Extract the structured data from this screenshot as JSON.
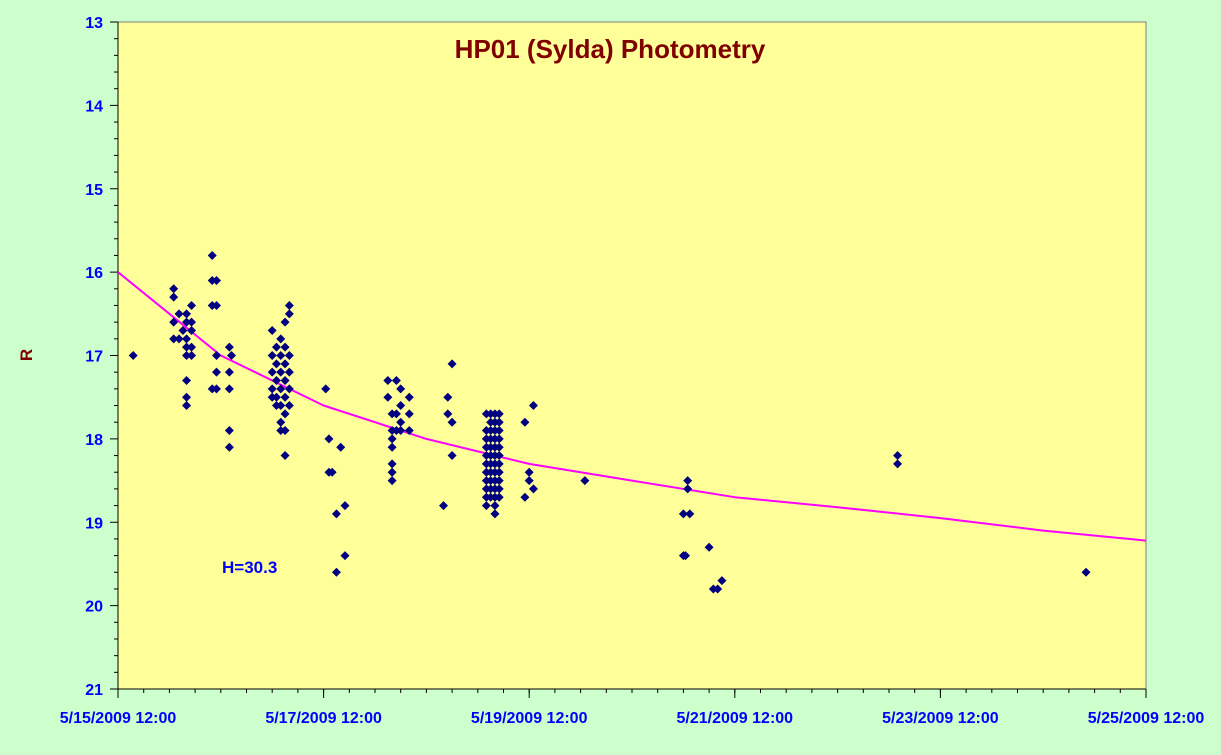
{
  "chart_data": {
    "type": "scatter",
    "title": "HP01 (Sylda) Photometry",
    "xlabel": "",
    "ylabel": "R",
    "annotation": "H=30.3",
    "xlim": [
      "5/15/2009 12:00",
      "5/25/2009 12:00"
    ],
    "ylim": [
      13,
      21
    ],
    "y_inverted": true,
    "grid": false,
    "legend": "none",
    "x_tick_labels": [
      "5/15/2009 12:00",
      "5/17/2009 12:00",
      "5/19/2009 12:00",
      "5/21/2009 12:00",
      "5/23/2009 12:00",
      "5/25/2009 12:00"
    ],
    "y_tick_labels": [
      "13",
      "14",
      "15",
      "16",
      "17",
      "18",
      "19",
      "20",
      "21"
    ],
    "colors": {
      "plot_area": "#ffff99",
      "background": "#ccffcc",
      "title": "#800000",
      "axis_labels": "#0000ff",
      "points": "#000080",
      "fit_line": "#ff00ff"
    },
    "series": [
      {
        "kind": "points",
        "points": [
          [
            "5/15/2009 15:33",
            17.0
          ],
          [
            "5/16/2009 01:00",
            16.2
          ],
          [
            "5/16/2009 01:00",
            16.3
          ],
          [
            "5/16/2009 01:00",
            16.6
          ],
          [
            "5/16/2009 01:00",
            16.8
          ],
          [
            "5/16/2009 02:15",
            16.5
          ],
          [
            "5/16/2009 02:15",
            16.8
          ],
          [
            "5/16/2009 03:10",
            16.7
          ],
          [
            "5/16/2009 04:00",
            16.5
          ],
          [
            "5/16/2009 04:00",
            16.6
          ],
          [
            "5/16/2009 04:00",
            16.8
          ],
          [
            "5/16/2009 04:00",
            16.9
          ],
          [
            "5/16/2009 04:00",
            17.0
          ],
          [
            "5/16/2009 04:00",
            17.3
          ],
          [
            "5/16/2009 04:00",
            17.5
          ],
          [
            "5/16/2009 04:00",
            17.6
          ],
          [
            "5/16/2009 05:10",
            16.4
          ],
          [
            "5/16/2009 05:10",
            16.6
          ],
          [
            "5/16/2009 05:10",
            16.9
          ],
          [
            "5/16/2009 05:10",
            17.0
          ],
          [
            "5/16/2009 05:10",
            16.7
          ],
          [
            "5/16/2009 10:00",
            15.8
          ],
          [
            "5/16/2009 10:00",
            16.1
          ],
          [
            "5/16/2009 10:00",
            16.4
          ],
          [
            "5/16/2009 10:00",
            17.4
          ],
          [
            "5/16/2009 11:00",
            16.1
          ],
          [
            "5/16/2009 11:00",
            16.4
          ],
          [
            "5/16/2009 11:00",
            17.0
          ],
          [
            "5/16/2009 11:00",
            17.2
          ],
          [
            "5/16/2009 11:00",
            17.4
          ],
          [
            "5/16/2009 14:00",
            16.9
          ],
          [
            "5/16/2009 14:00",
            17.2
          ],
          [
            "5/16/2009 14:00",
            17.4
          ],
          [
            "5/16/2009 14:00",
            17.9
          ],
          [
            "5/16/2009 14:00",
            18.1
          ],
          [
            "5/16/2009 14:30",
            17.0
          ],
          [
            "5/17/2009 00:00",
            16.7
          ],
          [
            "5/17/2009 00:00",
            17.0
          ],
          [
            "5/17/2009 00:00",
            17.2
          ],
          [
            "5/17/2009 00:00",
            17.4
          ],
          [
            "5/17/2009 00:00",
            17.5
          ],
          [
            "5/17/2009 01:00",
            16.9
          ],
          [
            "5/17/2009 01:00",
            17.1
          ],
          [
            "5/17/2009 01:00",
            17.3
          ],
          [
            "5/17/2009 01:00",
            17.5
          ],
          [
            "5/17/2009 01:00",
            17.6
          ],
          [
            "5/17/2009 02:00",
            16.8
          ],
          [
            "5/17/2009 02:00",
            17.0
          ],
          [
            "5/17/2009 02:00",
            17.2
          ],
          [
            "5/17/2009 02:00",
            17.4
          ],
          [
            "5/17/2009 02:00",
            17.6
          ],
          [
            "5/17/2009 02:00",
            17.8
          ],
          [
            "5/17/2009 02:00",
            17.9
          ],
          [
            "5/17/2009 03:00",
            16.6
          ],
          [
            "5/17/2009 03:00",
            16.9
          ],
          [
            "5/17/2009 03:00",
            17.1
          ],
          [
            "5/17/2009 03:00",
            17.3
          ],
          [
            "5/17/2009 03:00",
            17.5
          ],
          [
            "5/17/2009 03:00",
            17.7
          ],
          [
            "5/17/2009 03:00",
            17.9
          ],
          [
            "5/17/2009 03:00",
            18.2
          ],
          [
            "5/17/2009 04:00",
            16.4
          ],
          [
            "5/17/2009 04:00",
            16.5
          ],
          [
            "5/17/2009 04:00",
            17.0
          ],
          [
            "5/17/2009 04:00",
            17.2
          ],
          [
            "5/17/2009 04:00",
            17.4
          ],
          [
            "5/17/2009 04:00",
            17.6
          ],
          [
            "5/17/2009 12:30",
            17.4
          ],
          [
            "5/17/2009 13:15",
            18.0
          ],
          [
            "5/17/2009 13:15",
            18.4
          ],
          [
            "5/17/2009 14:00",
            18.4
          ],
          [
            "5/17/2009 15:00",
            18.9
          ],
          [
            "5/17/2009 15:00",
            19.6
          ],
          [
            "5/17/2009 16:00",
            18.1
          ],
          [
            "5/17/2009 17:00",
            18.8
          ],
          [
            "5/17/2009 17:00",
            19.4
          ],
          [
            "5/18/2009 03:00",
            17.3
          ],
          [
            "5/18/2009 03:00",
            17.5
          ],
          [
            "5/18/2009 04:00",
            17.7
          ],
          [
            "5/18/2009 04:00",
            17.9
          ],
          [
            "5/18/2009 04:00",
            18.0
          ],
          [
            "5/18/2009 04:00",
            18.1
          ],
          [
            "5/18/2009 04:00",
            18.3
          ],
          [
            "5/18/2009 04:00",
            18.4
          ],
          [
            "5/18/2009 04:00",
            18.5
          ],
          [
            "5/18/2009 05:00",
            17.3
          ],
          [
            "5/18/2009 05:00",
            17.7
          ],
          [
            "5/18/2009 05:00",
            17.9
          ],
          [
            "5/18/2009 06:00",
            17.4
          ],
          [
            "5/18/2009 06:00",
            17.6
          ],
          [
            "5/18/2009 06:00",
            17.8
          ],
          [
            "5/18/2009 06:00",
            17.9
          ],
          [
            "5/18/2009 08:00",
            17.5
          ],
          [
            "5/18/2009 08:00",
            17.7
          ],
          [
            "5/18/2009 08:00",
            17.9
          ],
          [
            "5/18/2009 16:00",
            18.8
          ],
          [
            "5/18/2009 17:00",
            17.5
          ],
          [
            "5/18/2009 17:00",
            17.7
          ],
          [
            "5/18/2009 18:00",
            17.1
          ],
          [
            "5/18/2009 18:00",
            17.8
          ],
          [
            "5/18/2009 18:00",
            18.2
          ],
          [
            "5/19/2009 02:00",
            17.7
          ],
          [
            "5/19/2009 02:00",
            17.9
          ],
          [
            "5/19/2009 02:00",
            18.0
          ],
          [
            "5/19/2009 02:00",
            18.1
          ],
          [
            "5/19/2009 02:00",
            18.2
          ],
          [
            "5/19/2009 02:00",
            18.3
          ],
          [
            "5/19/2009 02:00",
            18.4
          ],
          [
            "5/19/2009 02:00",
            18.5
          ],
          [
            "5/19/2009 02:00",
            18.6
          ],
          [
            "5/19/2009 02:00",
            18.7
          ],
          [
            "5/19/2009 02:00",
            18.8
          ],
          [
            "5/19/2009 03:00",
            17.7
          ],
          [
            "5/19/2009 03:00",
            17.8
          ],
          [
            "5/19/2009 03:00",
            17.9
          ],
          [
            "5/19/2009 03:00",
            18.0
          ],
          [
            "5/19/2009 03:00",
            18.1
          ],
          [
            "5/19/2009 03:00",
            18.2
          ],
          [
            "5/19/2009 03:00",
            18.3
          ],
          [
            "5/19/2009 03:00",
            18.4
          ],
          [
            "5/19/2009 03:00",
            18.5
          ],
          [
            "5/19/2009 03:00",
            18.6
          ],
          [
            "5/19/2009 03:00",
            18.7
          ],
          [
            "5/19/2009 04:00",
            17.7
          ],
          [
            "5/19/2009 04:00",
            17.8
          ],
          [
            "5/19/2009 04:00",
            17.9
          ],
          [
            "5/19/2009 04:00",
            18.0
          ],
          [
            "5/19/2009 04:00",
            18.1
          ],
          [
            "5/19/2009 04:00",
            18.2
          ],
          [
            "5/19/2009 04:00",
            18.3
          ],
          [
            "5/19/2009 04:00",
            18.4
          ],
          [
            "5/19/2009 04:00",
            18.5
          ],
          [
            "5/19/2009 04:00",
            18.6
          ],
          [
            "5/19/2009 04:00",
            18.7
          ],
          [
            "5/19/2009 04:00",
            18.8
          ],
          [
            "5/19/2009 04:00",
            18.9
          ],
          [
            "5/19/2009 05:00",
            17.7
          ],
          [
            "5/19/2009 05:00",
            17.8
          ],
          [
            "5/19/2009 05:00",
            17.9
          ],
          [
            "5/19/2009 05:00",
            18.0
          ],
          [
            "5/19/2009 05:00",
            18.1
          ],
          [
            "5/19/2009 05:00",
            18.2
          ],
          [
            "5/19/2009 05:00",
            18.3
          ],
          [
            "5/19/2009 05:00",
            18.4
          ],
          [
            "5/19/2009 05:00",
            18.5
          ],
          [
            "5/19/2009 05:00",
            18.6
          ],
          [
            "5/19/2009 05:00",
            18.7
          ],
          [
            "5/19/2009 11:00",
            17.8
          ],
          [
            "5/19/2009 11:00",
            18.7
          ],
          [
            "5/19/2009 12:00",
            18.4
          ],
          [
            "5/19/2009 12:00",
            18.5
          ],
          [
            "5/19/2009 13:00",
            17.6
          ],
          [
            "5/19/2009 13:00",
            18.6
          ],
          [
            "5/20/2009 01:00",
            18.5
          ],
          [
            "5/21/2009 00:00",
            18.9
          ],
          [
            "5/21/2009 00:00",
            19.4
          ],
          [
            "5/21/2009 00:30",
            19.4
          ],
          [
            "5/21/2009 01:00",
            18.5
          ],
          [
            "5/21/2009 01:00",
            18.6
          ],
          [
            "5/21/2009 01:30",
            18.9
          ],
          [
            "5/21/2009 06:00",
            19.3
          ],
          [
            "5/21/2009 07:00",
            19.8
          ],
          [
            "5/21/2009 08:00",
            19.8
          ],
          [
            "5/21/2009 09:00",
            19.7
          ],
          [
            "5/23/2009 02:00",
            18.2
          ],
          [
            "5/23/2009 02:00",
            18.3
          ],
          [
            "5/24/2009 22:00",
            19.6
          ]
        ]
      },
      {
        "kind": "trend",
        "points": [
          [
            "5/15/2009 12:00",
            16.0
          ],
          [
            "5/16/2009 12:00",
            17.0
          ],
          [
            "5/17/2009 12:00",
            17.6
          ],
          [
            "5/18/2009 12:00",
            18.0
          ],
          [
            "5/19/2009 12:00",
            18.3
          ],
          [
            "5/20/2009 12:00",
            18.5
          ],
          [
            "5/21/2009 12:00",
            18.7
          ],
          [
            "5/22/2009 12:00",
            18.82
          ],
          [
            "5/23/2009 12:00",
            18.95
          ],
          [
            "5/24/2009 12:00",
            19.1
          ],
          [
            "5/25/2009 12:00",
            19.22
          ]
        ]
      }
    ]
  }
}
